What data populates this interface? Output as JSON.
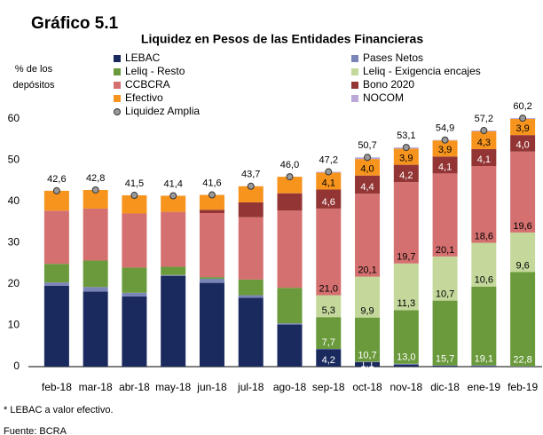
{
  "chart_data": {
    "type": "stacked_bar",
    "title": "Gráfico 5.1",
    "subtitle": "Liquidez en Pesos de las Entidades Financieras",
    "ylabel": [
      "% de los",
      "depósitos"
    ],
    "footnote": "* LEBAC a valor efectivo.",
    "source": "Fuente: BCRA",
    "categories": [
      "feb-18",
      "mar-18",
      "abr-18",
      "may-18",
      "jun-18",
      "jul-18",
      "ago-18",
      "sep-18",
      "oct-18",
      "nov-18",
      "dic-18",
      "ene-19",
      "feb-19"
    ],
    "ylim": [
      0,
      60
    ],
    "yticks": [
      0,
      10,
      20,
      30,
      40,
      50,
      60
    ],
    "grid": false,
    "series": [
      {
        "name": "LEBAC",
        "color": "#1b2a5e",
        "label_color": "#ffffff",
        "values": [
          19.6,
          18.2,
          17.0,
          22.0,
          20.3,
          16.7,
          10.2,
          4.2,
          1.1,
          0.5,
          0.2,
          0.1,
          0
        ],
        "value_labels": [
          null,
          null,
          null,
          null,
          null,
          null,
          null,
          "4,2",
          "1,1",
          null,
          null,
          null,
          null
        ]
      },
      {
        "name": "Pases Netos",
        "color": "#7b84b8",
        "values": [
          0.8,
          1.1,
          0.9,
          0.2,
          1.0,
          0.6,
          0.3,
          0.1,
          0.1,
          0.2,
          0.1,
          0.2,
          0.1
        ]
      },
      {
        "name": "Leliq - Resto",
        "color": "#6a9a3b",
        "label_color": "#ffffff",
        "values": [
          4.5,
          6.4,
          6.1,
          2.0,
          0.4,
          3.8,
          8.6,
          7.7,
          10.7,
          13.0,
          15.7,
          19.1,
          22.8
        ],
        "value_labels": [
          null,
          null,
          null,
          null,
          null,
          null,
          null,
          "7,7",
          "10,7",
          "13,0",
          "15,7",
          "19,1",
          "22,8"
        ]
      },
      {
        "name": "Leliq -  Exigencia encajes",
        "color": "#c4d89b",
        "label_color": "#000000",
        "values": [
          0,
          0,
          0,
          0,
          0,
          0,
          0,
          5.3,
          9.9,
          11.3,
          10.7,
          10.6,
          9.6
        ],
        "value_labels": [
          null,
          null,
          null,
          null,
          null,
          null,
          null,
          "5,3",
          "9,9",
          "11,3",
          "10,7",
          "10,6",
          "9,6"
        ]
      },
      {
        "name": "CCBCRA",
        "color": "#d4706f",
        "label_color": "#000000",
        "values": [
          12.9,
          12.6,
          13.1,
          13.3,
          15.5,
          15.1,
          18.7,
          21.0,
          20.1,
          19.7,
          20.1,
          18.6,
          19.6
        ],
        "value_labels": [
          null,
          null,
          null,
          null,
          null,
          null,
          null,
          "21,0",
          "20,1",
          "19,7",
          "20,1",
          "18,6",
          "19,6"
        ]
      },
      {
        "name": "Bono 2020",
        "color": "#943535",
        "label_color": "#ffffff",
        "values": [
          0,
          0,
          0,
          0,
          0.8,
          3.6,
          4.2,
          4.6,
          4.4,
          4.2,
          4.1,
          4.1,
          4.0
        ],
        "value_labels": [
          null,
          null,
          null,
          null,
          null,
          null,
          null,
          "4,6",
          "4,4",
          "4,2",
          "4,1",
          "4,1",
          "4,0"
        ]
      },
      {
        "name": "Efectivo",
        "color": "#f7941d",
        "label_color": "#000000",
        "values": [
          4.8,
          4.5,
          4.4,
          3.9,
          3.6,
          3.9,
          4.0,
          4.1,
          4.0,
          3.9,
          3.9,
          4.3,
          3.9
        ],
        "value_labels": [
          null,
          null,
          null,
          null,
          null,
          null,
          null,
          "4,1",
          "4,0",
          "3,9",
          "3,9",
          "4,3",
          "3,9"
        ]
      },
      {
        "name": "NOCOM",
        "color": "#b9a8d8",
        "values": [
          0,
          0,
          0,
          0,
          0,
          0,
          0,
          0.2,
          0.4,
          0.3,
          0.1,
          0.2,
          0.2
        ]
      },
      {
        "name": "Liquidez Amplia",
        "kind": "dot",
        "color": "#9a9a9a",
        "label_color": "#000000",
        "values": [
          42.6,
          42.8,
          41.5,
          41.4,
          41.6,
          43.7,
          46.0,
          47.2,
          50.7,
          53.1,
          54.9,
          57.2,
          60.2
        ],
        "value_labels": [
          "42,6",
          "42,8",
          "41,5",
          "41,4",
          "41,6",
          "43,7",
          "46,0",
          "47,2",
          "50,7",
          "53,1",
          "54,9",
          "57,2",
          "60,2"
        ]
      }
    ]
  }
}
